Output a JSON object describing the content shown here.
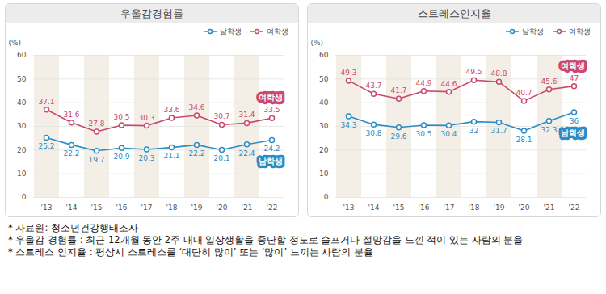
{
  "chart_data": [
    {
      "type": "line",
      "title": "우울감경험률",
      "categories": [
        "'13",
        "'14",
        "'15",
        "'16",
        "'17",
        "'18",
        "'19",
        "'20",
        "'21",
        "'22"
      ],
      "series": [
        {
          "name": "남학생",
          "color": "#2b8cc4",
          "values": [
            25.2,
            22.2,
            19.7,
            20.9,
            20.3,
            21.1,
            22.2,
            20.1,
            22.4,
            24.2
          ]
        },
        {
          "name": "여학생",
          "color": "#c94a6e",
          "values": [
            37.1,
            31.6,
            27.8,
            30.5,
            30.3,
            33.6,
            34.6,
            30.7,
            31.4,
            33.5
          ]
        }
      ],
      "y_label": "(%)",
      "ylim": [
        0,
        60
      ],
      "yticks": [
        0,
        10,
        20,
        30,
        40,
        50,
        60
      ],
      "grid": true,
      "legend": "top-right",
      "data_labels": true,
      "marker": "circle"
    },
    {
      "type": "line",
      "title": "스트레스인지율",
      "categories": [
        "'13",
        "'14",
        "'15",
        "'16",
        "'17",
        "'18",
        "'19",
        "'20",
        "'21",
        "'22"
      ],
      "series": [
        {
          "name": "남학생",
          "color": "#2b8cc4",
          "values": [
            34.3,
            30.8,
            29.6,
            30.5,
            30.4,
            32.0,
            31.7,
            28.1,
            32.3,
            36.0
          ]
        },
        {
          "name": "여학생",
          "color": "#c94a6e",
          "values": [
            49.3,
            43.7,
            41.7,
            44.9,
            44.6,
            49.5,
            48.8,
            40.7,
            45.6,
            47.0
          ]
        }
      ],
      "y_label": "(%)",
      "ylim": [
        0,
        60
      ],
      "yticks": [
        0,
        10,
        20,
        30,
        40,
        50,
        60
      ],
      "grid": true,
      "legend": "top-right",
      "data_labels": true,
      "marker": "circle"
    }
  ],
  "footnotes": [
    "* 자료원: 청소년건강행태조사",
    "* 우울감 경험률 : 최근 12개월 동안 2주 내내 일상생활을 중단할 정도로 슬프거나 절망감을 느낀 적이 있는 사람의 분율",
    "* 스트레스 인지율 : 평상시 스트레스를 ‘대단히 많이’ 또는 ‘많이’ 느끼는 사람의 분율"
  ]
}
